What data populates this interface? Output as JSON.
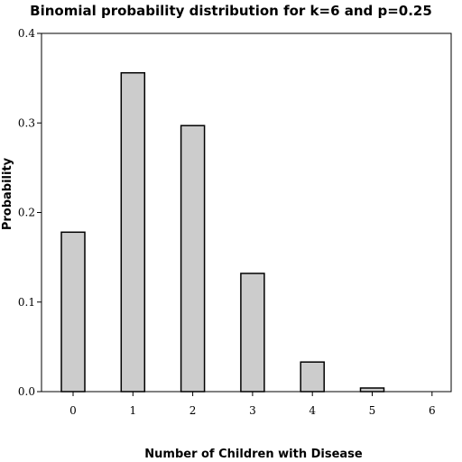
{
  "chart_data": {
    "type": "bar",
    "title": "Binomial probability distribution for k=6 and p=0.25",
    "xlabel": "Number of Children with Disease",
    "ylabel": "Probability",
    "categories": [
      "0",
      "1",
      "2",
      "3",
      "4",
      "5",
      "6"
    ],
    "values": [
      0.178,
      0.356,
      0.297,
      0.132,
      0.033,
      0.004,
      0.0002
    ],
    "ylim": [
      0,
      0.4
    ],
    "yticks": [
      "0.0",
      "0.1",
      "0.2",
      "0.3",
      "0.4"
    ],
    "grid": false,
    "legend": "none",
    "colors": {
      "bar_fill": "#cccccc",
      "bar_stroke": "#000000"
    }
  }
}
